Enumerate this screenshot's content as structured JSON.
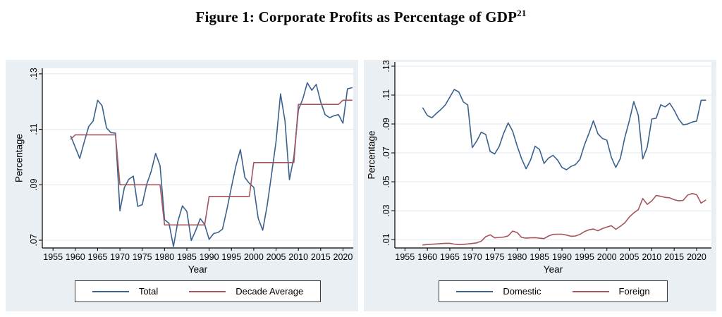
{
  "figure": {
    "title_text": "Figure 1: Corporate Profits as Percentage of GDP",
    "title_superscript": "21"
  },
  "colors": {
    "panel_background": "#e9eff3",
    "plot_background": "#ffffff",
    "gridline": "#dfeaf0",
    "axis": "#000000",
    "series_blue": "#3a618e",
    "series_red": "#a5555c",
    "legend_border": "#3f3f3f"
  },
  "chart_data": [
    {
      "type": "line",
      "panel": "left",
      "title": "",
      "xlabel": "Year",
      "ylabel": "Percentage",
      "grid": "horizontal",
      "legend_position": "bottom-center",
      "xlim": [
        1952.6,
        2022.3
      ],
      "ylim": [
        0.0672,
        0.132
      ],
      "xticks": [
        1955,
        1960,
        1965,
        1970,
        1975,
        1980,
        1985,
        1990,
        1995,
        2000,
        2005,
        2010,
        2015,
        2020
      ],
      "yticks": [
        0.07,
        0.09,
        0.11,
        0.13
      ],
      "ytick_labels": [
        ".07",
        ".09",
        ".11",
        ".13"
      ],
      "x": [
        1959,
        1960,
        1961,
        1962,
        1963,
        1964,
        1965,
        1966,
        1967,
        1968,
        1969,
        1970,
        1971,
        1972,
        1973,
        1974,
        1975,
        1976,
        1977,
        1978,
        1979,
        1980,
        1981,
        1982,
        1983,
        1984,
        1985,
        1986,
        1987,
        1988,
        1989,
        1990,
        1991,
        1992,
        1993,
        1994,
        1995,
        1996,
        1997,
        1998,
        1999,
        2000,
        2001,
        2002,
        2003,
        2004,
        2005,
        2006,
        2007,
        2008,
        2009,
        2010,
        2011,
        2012,
        2013,
        2014,
        2015,
        2016,
        2017,
        2018,
        2019,
        2020,
        2021,
        2022
      ],
      "series": [
        {
          "name": "Total",
          "color": "#3a618e",
          "values": [
            0.1075,
            0.1035,
            0.0995,
            0.1055,
            0.111,
            0.113,
            0.1205,
            0.1185,
            0.1105,
            0.1088,
            0.1086,
            0.0806,
            0.089,
            0.092,
            0.0931,
            0.0822,
            0.0828,
            0.0902,
            0.0948,
            0.1013,
            0.0969,
            0.0774,
            0.0761,
            0.0677,
            0.0768,
            0.0824,
            0.0804,
            0.0699,
            0.0736,
            0.0778,
            0.0757,
            0.0703,
            0.0724,
            0.0728,
            0.074,
            0.0812,
            0.0892,
            0.0968,
            0.1027,
            0.0926,
            0.0905,
            0.0891,
            0.0779,
            0.0736,
            0.0825,
            0.0938,
            0.1056,
            0.1228,
            0.113,
            0.0918,
            0.1,
            0.117,
            0.121,
            0.1268,
            0.1241,
            0.1262,
            0.1199,
            0.1153,
            0.1142,
            0.1149,
            0.1153,
            0.1122,
            0.1246,
            0.125
          ]
        },
        {
          "name": "Decade Average",
          "color": "#a5555c",
          "values": [
            0.1065,
            0.108,
            0.108,
            0.108,
            0.108,
            0.108,
            0.108,
            0.108,
            0.108,
            0.108,
            0.108,
            0.09,
            0.09,
            0.09,
            0.09,
            0.09,
            0.09,
            0.09,
            0.09,
            0.09,
            0.09,
            0.0755,
            0.0755,
            0.0755,
            0.0755,
            0.0755,
            0.0755,
            0.0755,
            0.0755,
            0.0755,
            0.0755,
            0.0858,
            0.0858,
            0.0858,
            0.0858,
            0.0858,
            0.0858,
            0.0858,
            0.0858,
            0.0858,
            0.0858,
            0.098,
            0.098,
            0.098,
            0.098,
            0.098,
            0.098,
            0.098,
            0.098,
            0.098,
            0.098,
            0.119,
            0.119,
            0.119,
            0.119,
            0.119,
            0.119,
            0.119,
            0.119,
            0.119,
            0.119,
            0.1205,
            0.1205,
            0.1205
          ]
        }
      ]
    },
    {
      "type": "line",
      "panel": "right",
      "title": "",
      "xlabel": "Year",
      "ylabel": "Percentage",
      "grid": "horizontal",
      "legend_position": "bottom-center",
      "xlim": [
        1952.75,
        2023.3
      ],
      "ylim": [
        0.0042,
        0.1329
      ],
      "xticks": [
        1955,
        1960,
        1965,
        1970,
        1975,
        1980,
        1985,
        1990,
        1995,
        2000,
        2005,
        2010,
        2015,
        2020
      ],
      "yticks": [
        0.01,
        0.03,
        0.05,
        0.07,
        0.09,
        0.11,
        0.13
      ],
      "ytick_labels": [
        ".01",
        ".03",
        ".05",
        ".07",
        ".09",
        ".11",
        ".13"
      ],
      "x": [
        1959,
        1960,
        1961,
        1962,
        1963,
        1964,
        1965,
        1966,
        1967,
        1968,
        1969,
        1970,
        1971,
        1972,
        1973,
        1974,
        1975,
        1976,
        1977,
        1978,
        1979,
        1980,
        1981,
        1982,
        1983,
        1984,
        1985,
        1986,
        1987,
        1988,
        1989,
        1990,
        1991,
        1992,
        1993,
        1994,
        1995,
        1996,
        1997,
        1998,
        1999,
        2000,
        2001,
        2002,
        2003,
        2004,
        2005,
        2006,
        2007,
        2008,
        2009,
        2010,
        2011,
        2012,
        2013,
        2014,
        2015,
        2016,
        2017,
        2018,
        2019,
        2020,
        2021,
        2022
      ],
      "series": [
        {
          "name": "Domestic",
          "color": "#3a618e",
          "values": [
            0.101,
            0.0959,
            0.0943,
            0.0973,
            0.1,
            0.1032,
            0.1086,
            0.1139,
            0.1122,
            0.1053,
            0.1032,
            0.0736,
            0.0782,
            0.0843,
            0.0828,
            0.071,
            0.0693,
            0.0745,
            0.0835,
            0.0908,
            0.085,
            0.0749,
            0.0659,
            0.059,
            0.0651,
            0.0746,
            0.0724,
            0.0627,
            0.0664,
            0.0683,
            0.0651,
            0.0599,
            0.0583,
            0.0606,
            0.0619,
            0.0655,
            0.0755,
            0.0835,
            0.0922,
            0.0832,
            0.08,
            0.0788,
            0.0669,
            0.0599,
            0.0661,
            0.0807,
            0.0921,
            0.1055,
            0.096,
            0.0658,
            0.074,
            0.0934,
            0.094,
            0.1033,
            0.1018,
            0.1044,
            0.0995,
            0.0934,
            0.0894,
            0.09,
            0.0913,
            0.092,
            0.1064,
            0.1065
          ]
        },
        {
          "name": "Foreign",
          "color": "#a5555c",
          "values": [
            0.0063,
            0.0066,
            0.0068,
            0.007,
            0.0072,
            0.0074,
            0.0074,
            0.0069,
            0.0065,
            0.0067,
            0.007,
            0.0073,
            0.0077,
            0.0089,
            0.012,
            0.0133,
            0.0112,
            0.0115,
            0.0117,
            0.0126,
            0.0159,
            0.0149,
            0.0115,
            0.011,
            0.0112,
            0.0113,
            0.011,
            0.0107,
            0.0125,
            0.0136,
            0.0137,
            0.0137,
            0.0131,
            0.0123,
            0.0125,
            0.0136,
            0.0155,
            0.0168,
            0.0173,
            0.0161,
            0.0176,
            0.0187,
            0.0196,
            0.0171,
            0.0192,
            0.0216,
            0.0256,
            0.0285,
            0.0307,
            0.0384,
            0.0344,
            0.0368,
            0.0405,
            0.04,
            0.0392,
            0.0389,
            0.0376,
            0.0368,
            0.0371,
            0.0408,
            0.0419,
            0.0411,
            0.0352,
            0.0373
          ]
        }
      ]
    }
  ]
}
